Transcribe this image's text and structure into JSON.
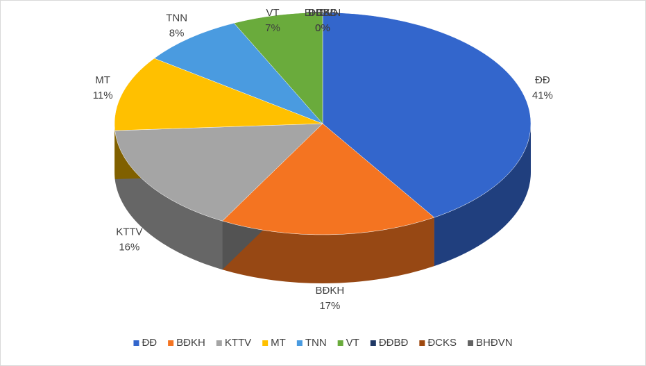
{
  "chart_data": {
    "type": "pie3d",
    "categories": [
      "ĐĐ",
      "BĐKH",
      "KTTV",
      "MT",
      "TNN",
      "VT",
      "ĐĐBĐ",
      "ĐCKS",
      "BHĐVN"
    ],
    "values": [
      41,
      17,
      16,
      11,
      8,
      7,
      0,
      0,
      0
    ],
    "value_labels": [
      "41%",
      "17%",
      "16%",
      "11%",
      "8%",
      "7%",
      "0%",
      "0%",
      "0%"
    ],
    "colors": [
      "#3366cc",
      "#f47421",
      "#a5a5a5",
      "#ffc000",
      "#4a9be0",
      "#6aab3c",
      "#1f3864",
      "#9e480e",
      "#636363"
    ],
    "legend": "bottom"
  }
}
